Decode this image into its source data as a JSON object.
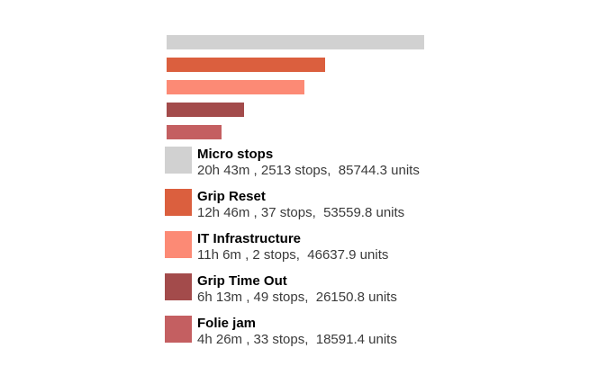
{
  "colors": {
    "background": "#FFFFFF",
    "title_text": "#000000",
    "subtitle_text": "#3B3B3B"
  },
  "chart_data": {
    "type": "bar",
    "orientation": "horizontal",
    "title": "",
    "xlabel": "",
    "ylabel": "",
    "axes_visible": false,
    "grid": false,
    "legend_position": "bottom-left",
    "value_basis": "duration_minutes",
    "categories": [
      "Micro stops",
      "Grip Reset",
      "IT Infrastructure",
      "Grip Time Out",
      "Folie jam"
    ],
    "series": [
      {
        "name": "duration_minutes",
        "values": [
          1243,
          766,
          666,
          373,
          266
        ]
      },
      {
        "name": "stops",
        "values": [
          2513,
          37,
          2,
          49,
          33
        ]
      },
      {
        "name": "units",
        "values": [
          85744.3,
          53559.8,
          46637.9,
          26150.8,
          18591.4
        ]
      }
    ],
    "items": [
      {
        "label": "Micro stops",
        "duration_label": "20h 43m",
        "duration_minutes": 1243,
        "stops": 2513,
        "units": 85744.3,
        "subtitle": "20h 43m , 2513 stops,  85744.3 units",
        "color": "#D1D1D1"
      },
      {
        "label": "Grip Reset",
        "duration_label": "12h 46m",
        "duration_minutes": 766,
        "stops": 37,
        "units": 53559.8,
        "subtitle": "12h 46m , 37 stops,  53559.8 units",
        "color": "#DB5F3E"
      },
      {
        "label": "IT Infrastructure",
        "duration_label": "11h 6m",
        "duration_minutes": 666,
        "stops": 2,
        "units": 46637.9,
        "subtitle": "11h 6m , 2 stops,  46637.9 units",
        "color": "#FC8A75"
      },
      {
        "label": "Grip Time Out",
        "duration_label": "6h 13m",
        "duration_minutes": 373,
        "stops": 49,
        "units": 26150.8,
        "subtitle": "6h 13m , 49 stops,  26150.8 units",
        "color": "#A34B4B"
      },
      {
        "label": "Folie jam",
        "duration_label": "4h 26m",
        "duration_minutes": 266,
        "stops": 33,
        "units": 18591.4,
        "subtitle": "4h 26m , 33 stops,  18591.4 units",
        "color": "#C45F61"
      }
    ]
  }
}
